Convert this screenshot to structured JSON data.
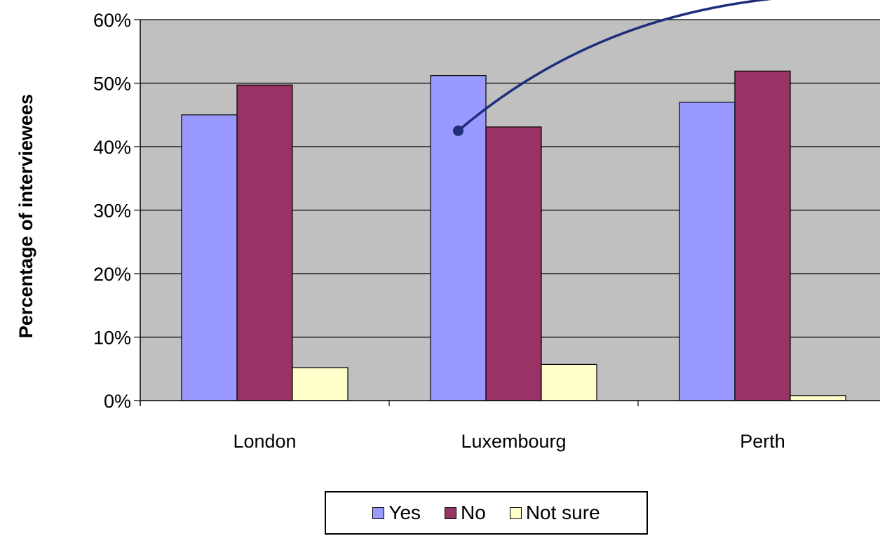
{
  "chart_data": {
    "type": "bar",
    "categories": [
      "London",
      "Luxembourg",
      "Perth"
    ],
    "series": [
      {
        "name": "Yes",
        "values": [
          45,
          51.2,
          47
        ],
        "color": "#9999ff"
      },
      {
        "name": "No",
        "values": [
          49.7,
          43.1,
          51.9
        ],
        "color": "#993366"
      },
      {
        "name": "Not sure",
        "values": [
          5.2,
          5.7,
          0.8
        ],
        "color": "#ffffcc"
      }
    ],
    "title": "",
    "xlabel": "",
    "ylabel": "Percentage of interviewees",
    "ylim": [
      0,
      60
    ],
    "yticks": [
      0,
      10,
      20,
      30,
      40,
      50,
      60
    ],
    "ytick_labels": [
      "0%",
      "10%",
      "20%",
      "30%",
      "40%",
      "50%",
      "60%"
    ],
    "plot_background": "#c0c0c0",
    "grid": true,
    "legend_position": "bottom",
    "annotation": {
      "type": "callout-line",
      "category": "Luxembourg",
      "series": "Yes",
      "y": 42.5,
      "color": "#1f2d7a"
    }
  }
}
